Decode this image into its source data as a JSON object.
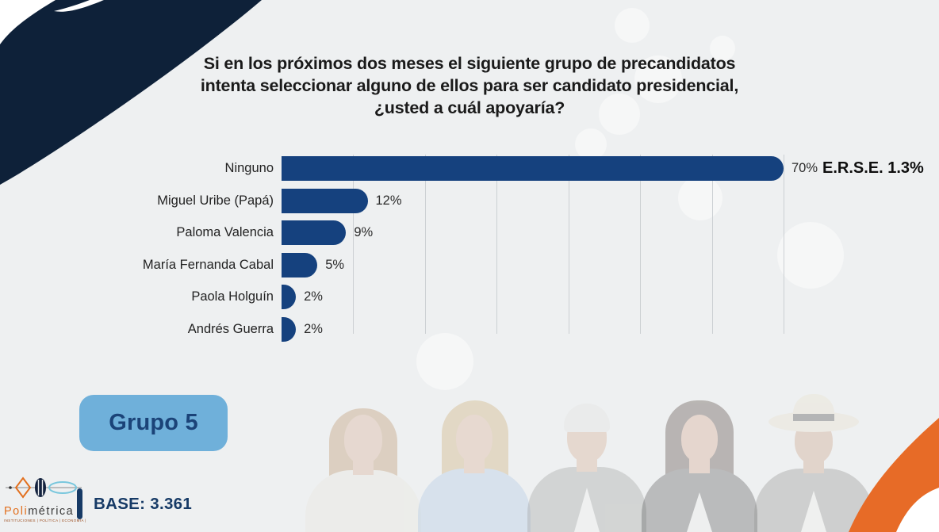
{
  "title": {
    "lines": [
      "Si en los próximos dos meses el siguiente grupo de precandidatos",
      "intenta seleccionar alguno de ellos para ser candidato presidencial,",
      "¿usted a cuál apoyaría?"
    ]
  },
  "chart_data": {
    "type": "bar",
    "orientation": "horizontal",
    "categories": [
      "Ninguno",
      "Miguel Uribe (Papá)",
      "Paloma Valencia",
      "María Fernanda Cabal",
      "Paola Holguín",
      "Andrés Guerra"
    ],
    "values": [
      70,
      12,
      9,
      5,
      2,
      2
    ],
    "value_labels": [
      "70%",
      "12%",
      "9%",
      "5%",
      "2%",
      "2%"
    ],
    "annotation": {
      "text": "E.R.S.E. 1.3%",
      "attached_to": "Ninguno"
    },
    "xlim": [
      0,
      70
    ],
    "gridline_step_pct": 10,
    "grid": true,
    "legend": "none",
    "bar_color": "#15417E",
    "title": "",
    "xlabel": "",
    "ylabel": ""
  },
  "group_badge": {
    "label": "Grupo 5"
  },
  "footer": {
    "base_label": "BASE: 3.361"
  },
  "logo": {
    "brand_part1": "Poli",
    "brand_part2": "métrica",
    "tagline": "INSTITUCIONES | POLÍTICA | ECONOMÍA | SOCIEDAD"
  },
  "decor": {
    "background": "#EEF0F1",
    "corner_swoosh_navy": "#0E2139",
    "corner_swoosh_orange": "#E76B27",
    "badge_blue": "#6FB0DA",
    "navy_text": "#163A66",
    "people_photos": [
      "woman-light-brown-hair-white-blouse",
      "woman-blonde-hair-blue-blouse",
      "man-white-hair-gray-suit",
      "woman-dark-hair-dark-suit",
      "man-cream-hat-gray-suit"
    ]
  }
}
